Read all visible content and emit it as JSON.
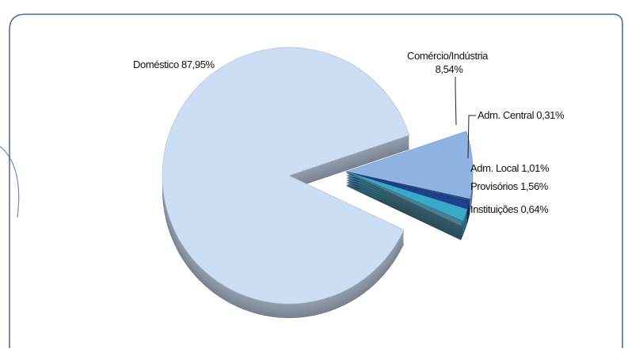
{
  "chart_data": {
    "type": "pie",
    "title": "",
    "slices": [
      {
        "label": "Doméstico 87,95%",
        "value": 87.95,
        "color": "#cdddf3",
        "exploded": false
      },
      {
        "label": "Comércio/Indústria 8,54%",
        "label_lines": [
          "Comércio/Indústria",
          "8,54%"
        ],
        "value": 8.54,
        "color": "#8fb3e2",
        "exploded": true
      },
      {
        "label": "Adm. Central 0,31%",
        "value": 0.31,
        "color": "#2a4d7f",
        "exploded": true
      },
      {
        "label": "Adm. Local 1,01%",
        "value": 1.01,
        "color": "#1f3f8a",
        "exploded": true
      },
      {
        "label": "Provisórios 1,56%",
        "value": 1.56,
        "color": "#38a9c6",
        "exploded": true
      },
      {
        "label": "Instituições 0,64%",
        "value": 0.64,
        "color": "#4a7f92",
        "exploded": true
      }
    ],
    "style": "3d-exploded"
  }
}
